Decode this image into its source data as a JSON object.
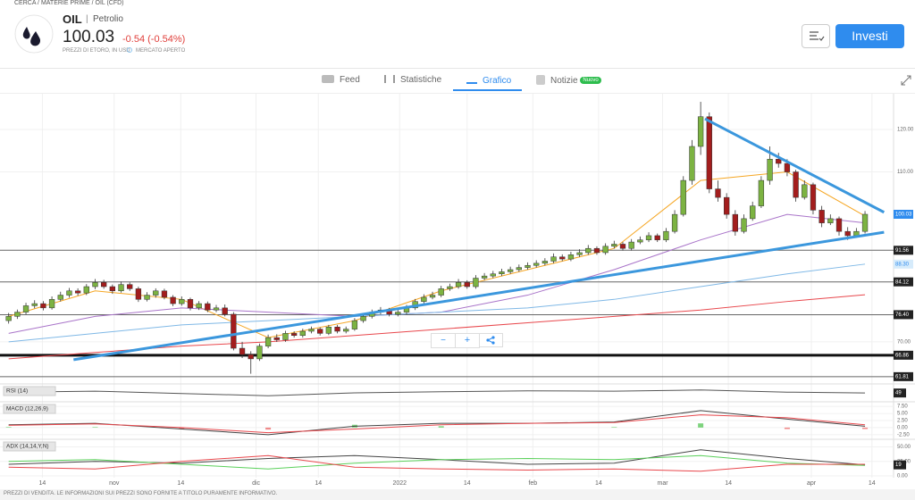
{
  "breadcrumb": "CERCA / MATERIE PRIME / OIL (CFD)",
  "instrument": {
    "symbol": "OIL",
    "separator": "|",
    "name": "Petrolio",
    "price": "100.03",
    "change": "-0.54 (-0.54%)",
    "source": "PREZZI DI ETORO, IN USD",
    "status": "MERCATO APERTO"
  },
  "invest_button": "Investi",
  "tabs": [
    {
      "label": "Feed"
    },
    {
      "label": "Statistiche"
    },
    {
      "label": "Grafico"
    },
    {
      "label": "Notizie",
      "badge": "Nuovo"
    }
  ],
  "zoom_controls": [
    "−",
    "+"
  ],
  "footer": "PREZZI DI VENDITA. LE INFORMAZIONI SUI PREZZI SONO FORNITE A TITOLO PURAMENTE INFORMATIVO.",
  "chart_data": {
    "type": "candlestick",
    "ylim": [
      60.1,
      128.4
    ],
    "yticks": [
      {
        "value": 70,
        "label": "70.00"
      },
      {
        "value": 110,
        "label": "110.00"
      },
      {
        "value": 120,
        "label": "120.00"
      }
    ],
    "xlim": [
      -1,
      102.3
    ],
    "xticks": [
      {
        "value": 3.9,
        "label": "14"
      },
      {
        "value": 12.2,
        "label": "nov"
      },
      {
        "value": 19.9,
        "label": "14"
      },
      {
        "value": 28.6,
        "label": "dic"
      },
      {
        "value": 35.8,
        "label": "14"
      },
      {
        "value": 45.2,
        "label": "2022"
      },
      {
        "value": 53,
        "label": "14"
      },
      {
        "value": 60.6,
        "label": "feb"
      },
      {
        "value": 68.2,
        "label": "14"
      },
      {
        "value": 75.6,
        "label": "mar"
      },
      {
        "value": 83.2,
        "label": "14"
      },
      {
        "value": 92.8,
        "label": "apr"
      },
      {
        "value": 99.8,
        "label": "14"
      }
    ],
    "grid": true,
    "up_color": "#7cb342",
    "down_color": "#a31d1d",
    "candles": [
      [
        75,
        76.8,
        74.3,
        76
      ],
      [
        76,
        77.6,
        75.4,
        77
      ],
      [
        77,
        79.2,
        76.5,
        78.5
      ],
      [
        78.5,
        79.8,
        77.9,
        79
      ],
      [
        79,
        79.6,
        77.4,
        78
      ],
      [
        78,
        80.7,
        77.6,
        80
      ],
      [
        80,
        81.8,
        79.5,
        81
      ],
      [
        81,
        82.7,
        80.4,
        82
      ],
      [
        82,
        82.6,
        80.9,
        81.5
      ],
      [
        81.5,
        83.6,
        81,
        83
      ],
      [
        83,
        84.8,
        82.4,
        84
      ],
      [
        84,
        84.6,
        82.5,
        83
      ],
      [
        83,
        83.5,
        81.3,
        82
      ],
      [
        82,
        84.2,
        81.6,
        83.5
      ],
      [
        83.5,
        84,
        82,
        82.5
      ],
      [
        82.5,
        83,
        79.4,
        80
      ],
      [
        80,
        81.7,
        79.5,
        81
      ],
      [
        81,
        82.6,
        80.4,
        82
      ],
      [
        82,
        82.5,
        80,
        80.5
      ],
      [
        80.5,
        81,
        78.4,
        79
      ],
      [
        79,
        80.7,
        78.5,
        80
      ],
      [
        80,
        80.4,
        77.4,
        78
      ],
      [
        78,
        79.6,
        77.5,
        79
      ],
      [
        79,
        79.5,
        77,
        77.5
      ],
      [
        77.5,
        78.7,
        77,
        78
      ],
      [
        78,
        78.8,
        76,
        76.5
      ],
      [
        76.5,
        77,
        68,
        68.5
      ],
      [
        68.5,
        70,
        66.2,
        67
      ],
      [
        67,
        67.8,
        62.5,
        66
      ],
      [
        66,
        69.6,
        65.5,
        69
      ],
      [
        69,
        71.7,
        68.5,
        71
      ],
      [
        71,
        71.8,
        70,
        70.5
      ],
      [
        70.5,
        72.6,
        70,
        72
      ],
      [
        72,
        72.5,
        71,
        71.5
      ],
      [
        71.5,
        73.1,
        71,
        72.5
      ],
      [
        72.5,
        73.6,
        72,
        73
      ],
      [
        73,
        73.4,
        71.5,
        72
      ],
      [
        72,
        74,
        71.6,
        73.5
      ],
      [
        73.5,
        74,
        72,
        72.5
      ],
      [
        72.5,
        73.6,
        72,
        73
      ],
      [
        73,
        75.6,
        72.6,
        75
      ],
      [
        75,
        76.7,
        74.5,
        76
      ],
      [
        76,
        77.6,
        75.5,
        77
      ],
      [
        77,
        78.2,
        76.5,
        77.5
      ],
      [
        77.5,
        78,
        76,
        76.5
      ],
      [
        76.5,
        77.6,
        76,
        77
      ],
      [
        77,
        78.7,
        76.5,
        78
      ],
      [
        78,
        80.1,
        77.5,
        79.5
      ],
      [
        79.5,
        81.2,
        79,
        80.5
      ],
      [
        80.5,
        81.8,
        80,
        81
      ],
      [
        81,
        83.2,
        80.5,
        82.5
      ],
      [
        82.5,
        83.7,
        82,
        83
      ],
      [
        83,
        84.8,
        82.5,
        84
      ],
      [
        84,
        84.5,
        82.5,
        83
      ],
      [
        83,
        85.7,
        82.5,
        85
      ],
      [
        85,
        86.2,
        84.5,
        85.5
      ],
      [
        85.5,
        86.7,
        85,
        86
      ],
      [
        86,
        87.2,
        85.5,
        86.5
      ],
      [
        86.5,
        87.7,
        86,
        87
      ],
      [
        87,
        88.2,
        86.5,
        87.5
      ],
      [
        87.5,
        88.7,
        87,
        88
      ],
      [
        88,
        89.2,
        87.5,
        88.5
      ],
      [
        88.5,
        89.7,
        88,
        89
      ],
      [
        89,
        90.8,
        88.5,
        90
      ],
      [
        90,
        90.6,
        89,
        89.5
      ],
      [
        89.5,
        91.2,
        89,
        90.5
      ],
      [
        90.5,
        91.8,
        90,
        91
      ],
      [
        91,
        92.8,
        90.5,
        92
      ],
      [
        92,
        92.5,
        90.5,
        91
      ],
      [
        91,
        93.2,
        90.5,
        92.5
      ],
      [
        92.5,
        93.8,
        92,
        93
      ],
      [
        93,
        93.5,
        91.5,
        92
      ],
      [
        92,
        94.2,
        91.5,
        93.5
      ],
      [
        93.5,
        94.8,
        93,
        94
      ],
      [
        94,
        95.8,
        93.5,
        95
      ],
      [
        95,
        95.5,
        93.5,
        94
      ],
      [
        94,
        96.8,
        93.5,
        96
      ],
      [
        96,
        101,
        95.5,
        100
      ],
      [
        100,
        109,
        99.5,
        108
      ],
      [
        108,
        117.5,
        107,
        116
      ],
      [
        116,
        126.5,
        114,
        123
      ],
      [
        123,
        124,
        105,
        106
      ],
      [
        106,
        108,
        103,
        104
      ],
      [
        104,
        105,
        99,
        100
      ],
      [
        100,
        101,
        95,
        96
      ],
      [
        96,
        100,
        95.5,
        99
      ],
      [
        99,
        103,
        98.5,
        102
      ],
      [
        102,
        109,
        101.5,
        108
      ],
      [
        108,
        116,
        107,
        113
      ],
      [
        113,
        114.5,
        111,
        112
      ],
      [
        112,
        113,
        109,
        110
      ],
      [
        110,
        110.5,
        103,
        104
      ],
      [
        104,
        108,
        103.5,
        107
      ],
      [
        107,
        107.5,
        100,
        101
      ],
      [
        101,
        102,
        97,
        98
      ],
      [
        98,
        100,
        97.5,
        99
      ],
      [
        99,
        99.5,
        95,
        96
      ],
      [
        96,
        97,
        94,
        95
      ],
      [
        95,
        96.8,
        94.5,
        96
      ],
      [
        96,
        100.8,
        95.5,
        100.03
      ]
    ],
    "ma_x": [
      0,
      10,
      20,
      30,
      40,
      50,
      60,
      70,
      80,
      90,
      99
    ],
    "moving_averages": [
      {
        "color": "#f5a623",
        "values": [
          76,
          82,
          80,
          71,
          75,
          82,
          87,
          92,
          108,
          110,
          99.61
        ]
      },
      {
        "color": "#a974c9",
        "values": [
          72,
          76,
          78,
          77,
          76,
          77,
          81,
          87,
          94,
          100,
          98
        ]
      },
      {
        "color": "#7fb8e6",
        "values": [
          70,
          72,
          74,
          75,
          76,
          77,
          78,
          80,
          83,
          86,
          88.3
        ]
      },
      {
        "color": "#e8474c",
        "values": [
          66,
          67.5,
          69,
          70,
          71.5,
          73,
          74.5,
          76,
          77.5,
          79.5,
          81.1
        ]
      }
    ],
    "trendlines": [
      {
        "color": "#3b97dd",
        "x": [
          80.5,
          101.2
        ],
        "y": [
          122.5,
          100.5
        ]
      },
      {
        "color": "#3b97dd",
        "x": [
          7.5,
          101.2
        ],
        "y": [
          65.8,
          95.8
        ]
      }
    ],
    "levels": [
      {
        "value": 91.56,
        "label": "91.56"
      },
      {
        "value": 84.12,
        "label": "84.12"
      },
      {
        "value": 76.4,
        "label": "76.40"
      },
      {
        "value": 66.86,
        "label": "66.86"
      },
      {
        "value": 61.81,
        "label": "61.81"
      }
    ],
    "price_tags": [
      {
        "value": 100.03,
        "label": "100.03",
        "color": "#2f8cee"
      },
      {
        "value": 88.3,
        "label": "88.30",
        "color": "#d6ebfb"
      }
    ],
    "indicators": [
      {
        "name": "RSI (14)",
        "ylim": [
          0,
          100
        ],
        "yticks": [],
        "tag": 49,
        "series": [
          {
            "color": "#555",
            "values": [
              55,
              62,
              45,
              30,
              50,
              58,
              64,
              62,
              70,
              55,
              49
            ]
          }
        ]
      },
      {
        "name": "MACD (12,26,9)",
        "ylim": [
          -3.5,
          8.5
        ],
        "yticks": [
          {
            "value": 7.5,
            "label": "7.50"
          },
          {
            "value": 5,
            "label": "5.00"
          },
          {
            "value": 2.5,
            "label": "2.50"
          },
          {
            "value": 0,
            "label": "0.00"
          },
          {
            "value": -2.5,
            "label": "-2.50"
          }
        ],
        "bars": [
          0.2,
          0.2,
          -0.5,
          -0.7,
          1,
          0.5,
          0,
          0.2,
          1.5,
          -0.5,
          -0.5
        ],
        "series": [
          {
            "color": "#444",
            "values": [
              1,
              1.5,
              -0.5,
              -2.5,
              0.5,
              1.5,
              1.5,
              2,
              6,
              3,
              0.5
            ]
          },
          {
            "color": "#e8474c",
            "values": [
              0.8,
              1.3,
              0,
              -1.8,
              -0.5,
              1,
              1.5,
              1.8,
              4.5,
              3.5,
              1
            ]
          }
        ]
      },
      {
        "name": "ADX (14,14,Y,N)",
        "ylim": [
          0,
          60
        ],
        "yticks": [
          {
            "value": 50,
            "label": "50.00"
          },
          {
            "value": 25,
            "label": "25.00"
          },
          {
            "value": 0,
            "label": "0.00"
          }
        ],
        "tag": 19,
        "series": [
          {
            "color": "#444",
            "values": [
              20,
              25,
              22,
              30,
              35,
              28,
              20,
              22,
              45,
              30,
              19
            ]
          },
          {
            "color": "#5ad05a",
            "values": [
              25,
              28,
              20,
              12,
              22,
              28,
              30,
              28,
              35,
              22,
              18
            ]
          },
          {
            "color": "#e8474c",
            "values": [
              15,
              12,
              25,
              35,
              15,
              12,
              10,
              12,
              8,
              20,
              20
            ]
          }
        ]
      }
    ]
  }
}
